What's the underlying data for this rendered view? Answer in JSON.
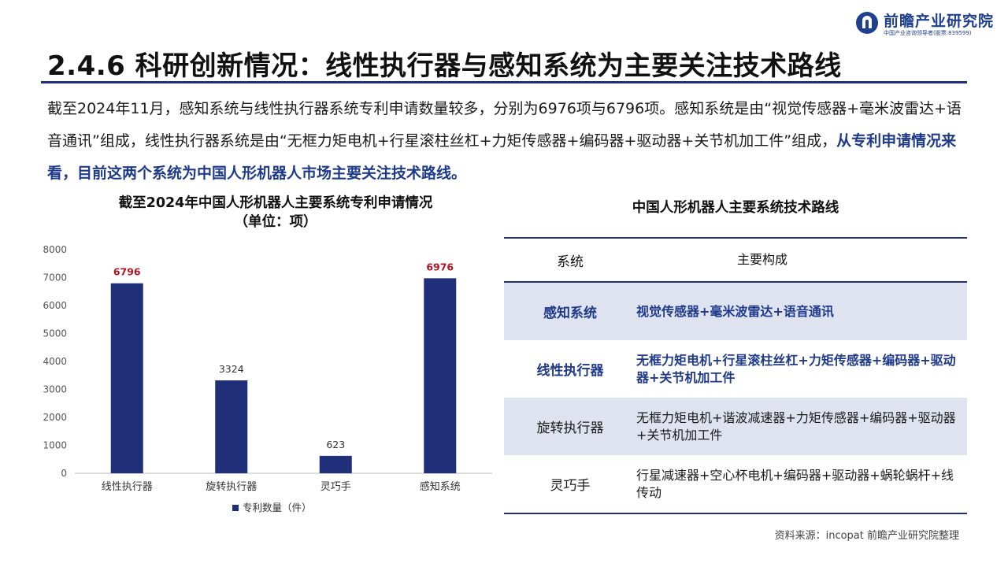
{
  "brand": {
    "name": "前瞻产业研究院",
    "tagline": "中国产业咨询领导者(股票:839599)"
  },
  "page": {
    "title": "2.4.6 科研创新情况：线性执行器与感知系统为主要关注技术路线",
    "intro_plain": "截至2024年11月，感知系统与线性执行器系统专利申请数量较多，分别为6976项与6796项。感知系统是由“视觉传感器+毫米波雷达+语音通讯”组成，线性执行器系统是由“无框力矩电机+行星滚柱丝杠+力矩传感器+编码器+驱动器+关节机加工件”组成，",
    "intro_highlight": "从专利申请情况来看，目前这两个系统为中国人形机器人市场主要关注技术路线。",
    "source": "资料来源：incopat 前瞻产业研究院整理"
  },
  "chart_data": {
    "type": "bar",
    "title": "截至2024年中国人形机器人主要系统专利申请情况",
    "subtitle": "（单位：项）",
    "categories": [
      "线性执行器",
      "旋转执行器",
      "灵巧手",
      "感知系统"
    ],
    "series": [
      {
        "name": "专利数量（件）",
        "values": [
          6796,
          3324,
          623,
          6976
        ],
        "labels": [
          "6796",
          "3324",
          "623",
          "6976"
        ],
        "color": "#1f2f7a"
      }
    ],
    "highlight_label_color": "#b3141f",
    "highlight_indices": [
      0,
      3
    ],
    "ylim": [
      0,
      8000
    ],
    "yticks": [
      0,
      1000,
      2000,
      3000,
      4000,
      5000,
      6000,
      7000,
      8000
    ],
    "ytick_labels": [
      "0",
      "1000",
      "2000",
      "3000",
      "4000",
      "5000",
      "6000",
      "7000",
      "8000"
    ],
    "grid": false,
    "legend": "bottom"
  },
  "table": {
    "title": "中国人形机器人主要系统技术路线",
    "headers": [
      "系统",
      "主要构成"
    ],
    "rows": [
      {
        "system": "感知系统",
        "composition": "视觉传感器+毫米波雷达+语音通讯"
      },
      {
        "system": "线性执行器",
        "composition": "无框力矩电机+行星滚柱丝杠+力矩传感器+编码器+驱动器+关节机加工件"
      },
      {
        "system": "旋转执行器",
        "composition": "无框力矩电机+谐波减速器+力矩传感器+编码器+驱动器+关节机加工件"
      },
      {
        "system": "灵巧手",
        "composition": "行星减速器+空心杯电机+编码器+驱动器+蜗轮蜗杆+线传动"
      }
    ]
  },
  "colors": {
    "navy": "#1f2f7a",
    "highlight_blue": "#1f3a8a",
    "row_shade": "#dee3ef"
  }
}
